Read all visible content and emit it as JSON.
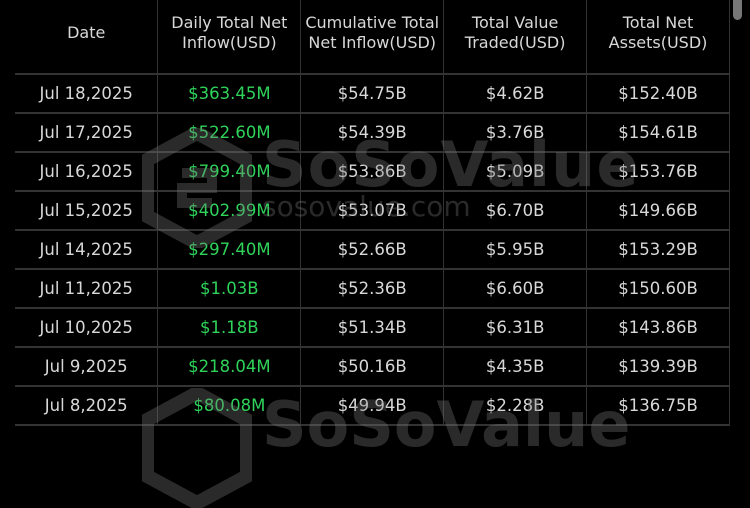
{
  "table": {
    "headers": [
      "Date",
      "Daily Total Net Inflow(USD)",
      "Cumulative Total Net Inflow(USD)",
      "Total Value Traded(USD)",
      "Total Net Assets(USD)"
    ],
    "rows": [
      [
        "Jul 18,2025",
        "$363.45M",
        "$54.75B",
        "$4.62B",
        "$152.40B"
      ],
      [
        "Jul 17,2025",
        "$522.60M",
        "$54.39B",
        "$3.76B",
        "$154.61B"
      ],
      [
        "Jul 16,2025",
        "$799.40M",
        "$53.86B",
        "$5.09B",
        "$153.76B"
      ],
      [
        "Jul 15,2025",
        "$402.99M",
        "$53.07B",
        "$6.70B",
        "$149.66B"
      ],
      [
        "Jul 14,2025",
        "$297.40M",
        "$52.66B",
        "$5.95B",
        "$153.29B"
      ],
      [
        "Jul 11,2025",
        "$1.03B",
        "$52.36B",
        "$6.60B",
        "$150.60B"
      ],
      [
        "Jul 10,2025",
        "$1.18B",
        "$51.34B",
        "$6.31B",
        "$143.86B"
      ],
      [
        "Jul 9,2025",
        "$218.04M",
        "$50.16B",
        "$4.35B",
        "$139.39B"
      ],
      [
        "Jul 8,2025",
        "$80.08M",
        "$49.94B",
        "$2.28B",
        "$136.75B"
      ]
    ]
  },
  "watermark": {
    "brand": "SoSoValue",
    "url": "sosovalue.com"
  },
  "colors": {
    "inflow_positive": "#2fd35a",
    "background": "#000000",
    "text": "#d8d8d8"
  }
}
